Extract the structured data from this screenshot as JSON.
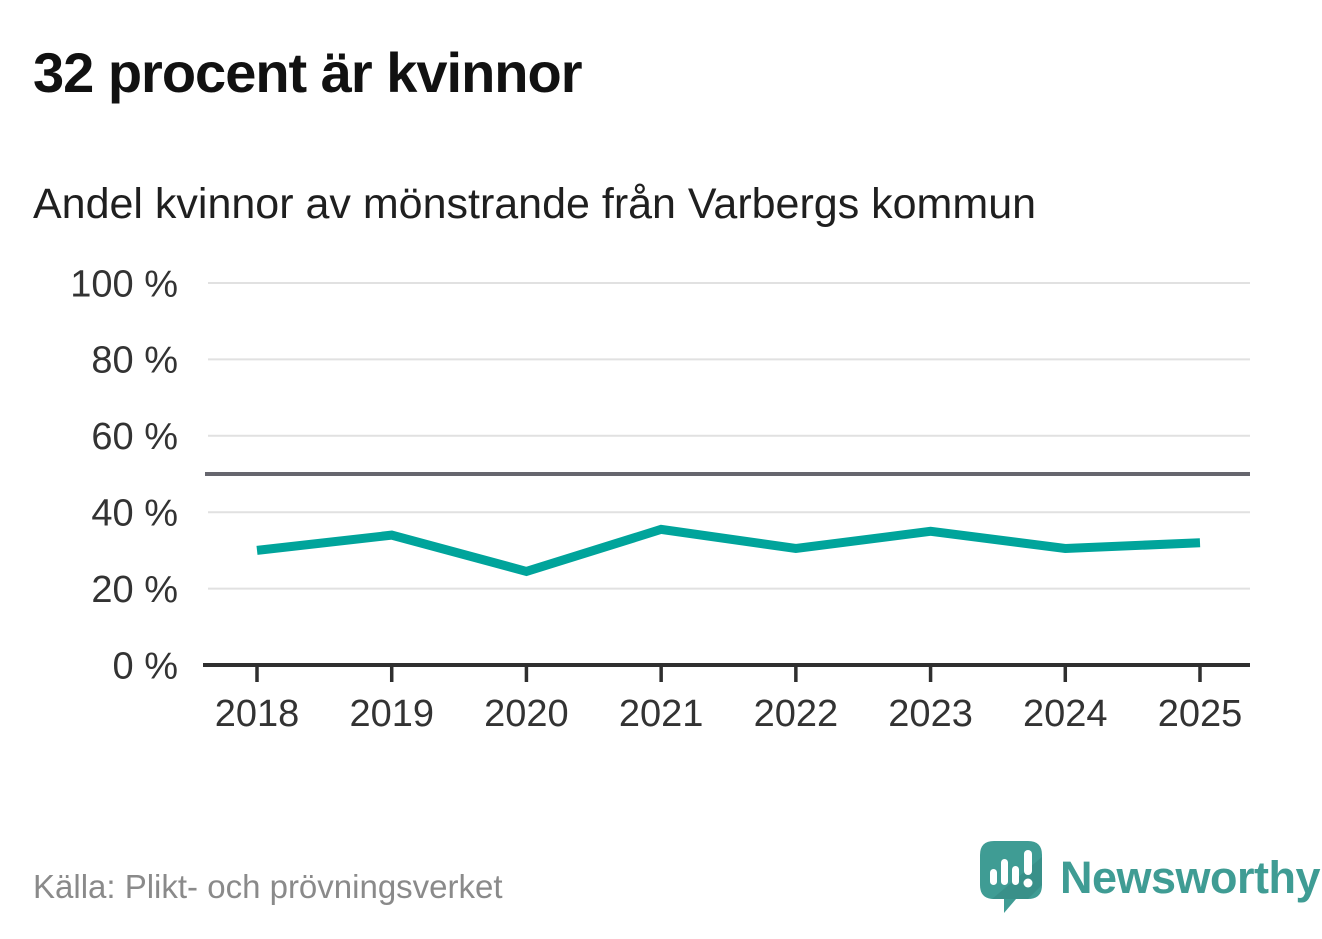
{
  "header": {
    "title": "32 procent är kvinnor",
    "subtitle": "Andel kvinnor av mönstrande från Varbergs kommun"
  },
  "footer": {
    "source": "Källa: Plikt- och prövningsverket",
    "brand": "Newsworthy"
  },
  "colors": {
    "line": "#00a49b",
    "brand_teal": "#3f9c94",
    "brand_shade": "#35877f",
    "grid": "#e1e1e1",
    "reference_line": "#66666e",
    "axis": "#2f2f2f",
    "axis_text": "#333333",
    "title_text": "#111111",
    "source_text": "#8a8a8a"
  },
  "chart_data": {
    "type": "line",
    "title": "32 procent är kvinnor",
    "subtitle": "Andel kvinnor av mönstrande från Varbergs kommun",
    "categories": [
      "2018",
      "2019",
      "2020",
      "2021",
      "2022",
      "2023",
      "2024",
      "2025"
    ],
    "series": [
      {
        "name": "Andel kvinnor av mönstrande",
        "color": "#00a49b",
        "values": [
          30,
          34,
          24.5,
          35.5,
          30.5,
          35,
          30.5,
          32
        ]
      }
    ],
    "xlabel": "",
    "ylabel": "",
    "ylim": [
      0,
      100
    ],
    "yticks": [
      0,
      20,
      40,
      60,
      80,
      100
    ],
    "ytick_labels": [
      "0 %",
      "20 %",
      "40 %",
      "60 %",
      "80 %",
      "100 %"
    ],
    "reference_line": 50,
    "grid": true,
    "legend": false
  }
}
